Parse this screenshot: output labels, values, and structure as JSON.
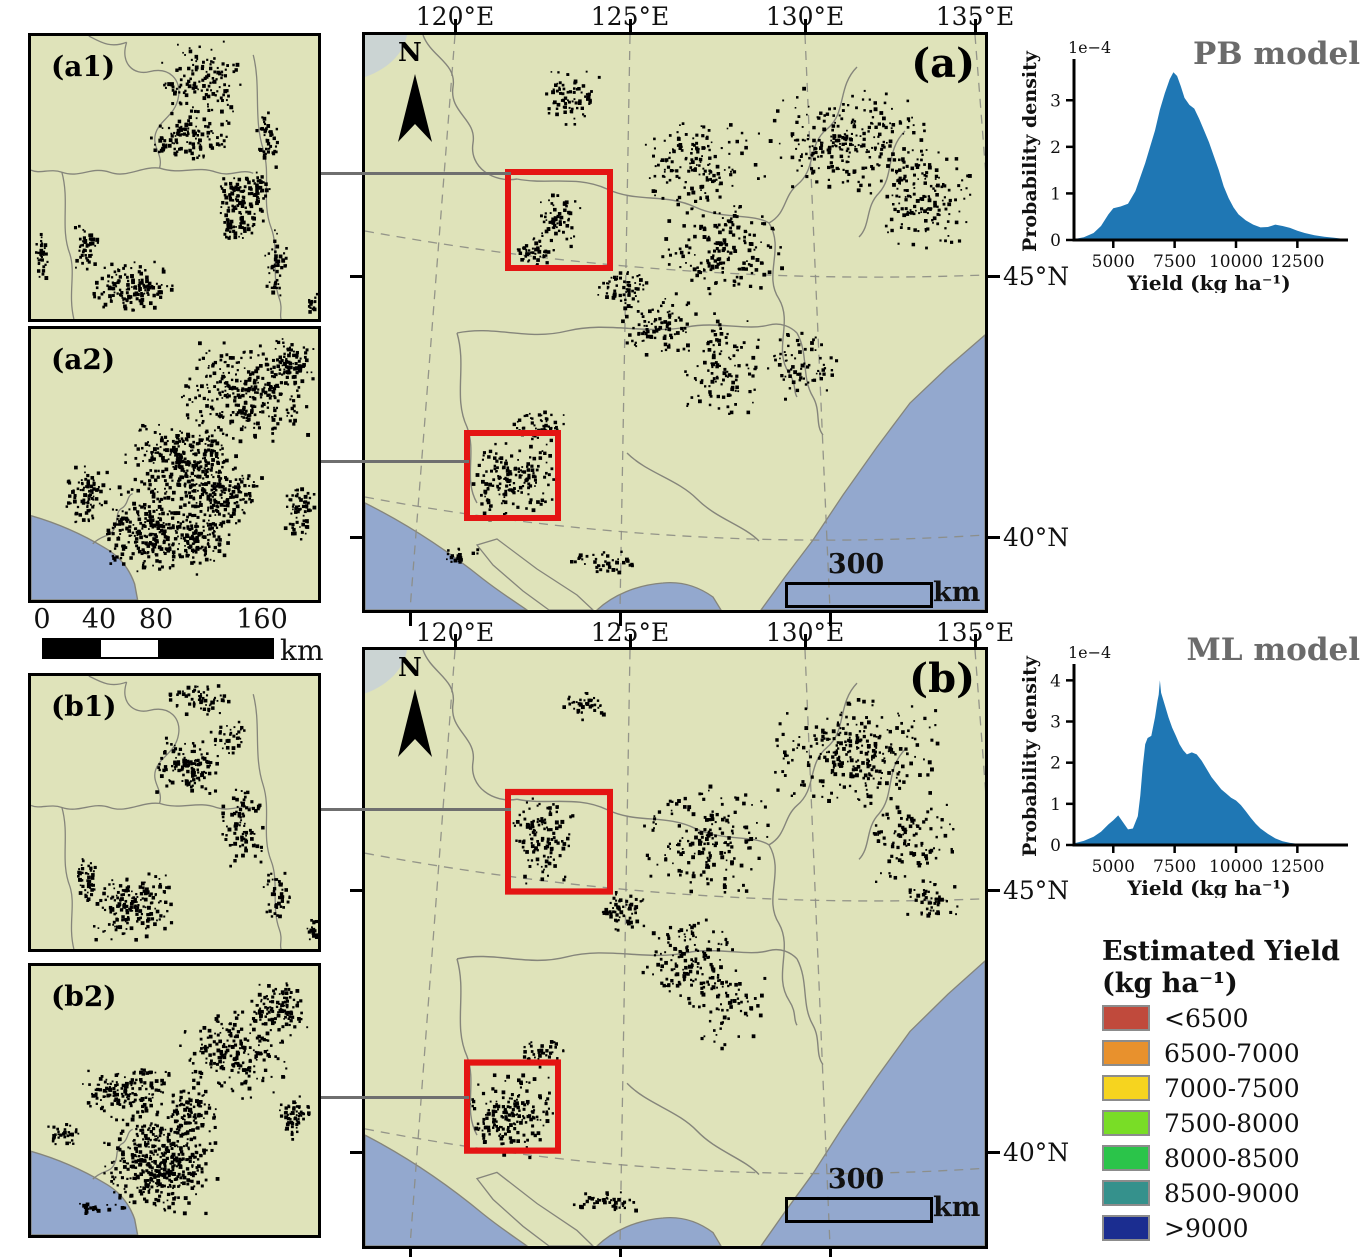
{
  "figure": {
    "panels": {
      "a": "(a)",
      "b": "(b)"
    },
    "insets": {
      "a1": "(a1)",
      "a2": "(a2)",
      "b1": "(b1)",
      "b2": "(b2)"
    },
    "north_label": "N"
  },
  "axes": {
    "longitude_labels": [
      "120°E",
      "125°E",
      "130°E",
      "135°E"
    ],
    "latitude_labels": [
      "45°N",
      "40°N"
    ]
  },
  "left_scalebar": {
    "tick_labels": [
      "0",
      "40",
      "80",
      "160"
    ],
    "unit": "km"
  },
  "map_scalebar": {
    "distance": "300",
    "unit": "km"
  },
  "legend": {
    "title_line1": "Estimated Yield",
    "title_line2": "(kg ha⁻¹)",
    "items": [
      {
        "label": "<6500",
        "color": "#c04a3c"
      },
      {
        "label": "6500-7000",
        "color": "#e8912d"
      },
      {
        "label": "7000-7500",
        "color": "#f6d41f"
      },
      {
        "label": "7500-8000",
        "color": "#79dd26"
      },
      {
        "label": "8000-8500",
        "color": "#2bc44a"
      },
      {
        "label": "8500-9000",
        "color": "#35918c"
      },
      {
        "label": ">9000",
        "color": "#1b2d90"
      }
    ]
  },
  "map_colors": {
    "land": "#dfe3ba",
    "sea": "#93a8ce",
    "boundary": "#85857b",
    "graticule": "#8c8c84",
    "extent_rectangle": "#e41513",
    "connector": "#6f6f6f",
    "corner_patch": "#c6d0da"
  },
  "chart_data": [
    {
      "type": "area",
      "name": "PB model",
      "title": "PB model",
      "title_color": "#6b6b6b",
      "xlabel": "Yield (kg ha⁻¹)",
      "ylabel": "Probability density",
      "offset_label": "1e−4",
      "fill_color": "#1f77b4",
      "xlim": [
        3400,
        14400
      ],
      "ylim": [
        0,
        3.8
      ],
      "x_ticks": [
        5000,
        7500,
        10000,
        12500
      ],
      "y_ticks": [
        0,
        1,
        2,
        3
      ],
      "x": [
        3400,
        3800,
        4200,
        4500,
        4800,
        5000,
        5300,
        5600,
        5900,
        6100,
        6300,
        6500,
        6700,
        6900,
        7100,
        7300,
        7450,
        7600,
        7750,
        7900,
        8100,
        8300,
        8500,
        8700,
        8900,
        9100,
        9300,
        9500,
        9700,
        9900,
        10100,
        10400,
        10700,
        11000,
        11300,
        11600,
        11900,
        12200,
        12500,
        12800,
        13200,
        13600,
        14000,
        14300
      ],
      "density_1e4": [
        0.02,
        0.06,
        0.15,
        0.3,
        0.55,
        0.68,
        0.72,
        0.78,
        1.05,
        1.35,
        1.65,
        2.0,
        2.35,
        2.8,
        3.15,
        3.45,
        3.6,
        3.52,
        3.3,
        3.05,
        2.9,
        2.82,
        2.6,
        2.35,
        2.1,
        1.8,
        1.5,
        1.15,
        0.9,
        0.7,
        0.55,
        0.42,
        0.33,
        0.27,
        0.28,
        0.33,
        0.3,
        0.26,
        0.2,
        0.15,
        0.1,
        0.07,
        0.05,
        0.03
      ]
    },
    {
      "type": "area",
      "name": "ML model",
      "title": "ML model",
      "title_color": "#6b6b6b",
      "xlabel": "Yield (kg ha⁻¹)",
      "ylabel": "Probability density",
      "offset_label": "1e−4",
      "fill_color": "#1f77b4",
      "xlim": [
        3400,
        14400
      ],
      "ylim": [
        0,
        4.3
      ],
      "x_ticks": [
        5000,
        7500,
        10000,
        12500
      ],
      "y_ticks": [
        0,
        1,
        2,
        3,
        4
      ],
      "x": [
        3400,
        3800,
        4200,
        4500,
        4800,
        5000,
        5200,
        5400,
        5600,
        5800,
        6000,
        6100,
        6200,
        6300,
        6400,
        6550,
        6700,
        6800,
        6850,
        6900,
        6950,
        7100,
        7250,
        7400,
        7550,
        7700,
        7850,
        8000,
        8200,
        8400,
        8600,
        8800,
        9000,
        9200,
        9400,
        9600,
        9800,
        10000,
        10200,
        10400,
        10600,
        10800,
        11000,
        11300,
        11600,
        11900,
        12200,
        12500,
        12800
      ],
      "density_1e4": [
        0.04,
        0.1,
        0.2,
        0.32,
        0.5,
        0.6,
        0.72,
        0.55,
        0.38,
        0.4,
        0.7,
        1.2,
        1.9,
        2.45,
        2.6,
        2.65,
        3.1,
        3.5,
        3.65,
        4.0,
        3.7,
        3.4,
        3.1,
        2.85,
        2.65,
        2.45,
        2.3,
        2.2,
        2.25,
        2.2,
        2.05,
        1.85,
        1.65,
        1.5,
        1.35,
        1.25,
        1.15,
        1.08,
        0.97,
        0.82,
        0.66,
        0.52,
        0.4,
        0.27,
        0.16,
        0.09,
        0.05,
        0.03,
        0.02
      ]
    }
  ]
}
